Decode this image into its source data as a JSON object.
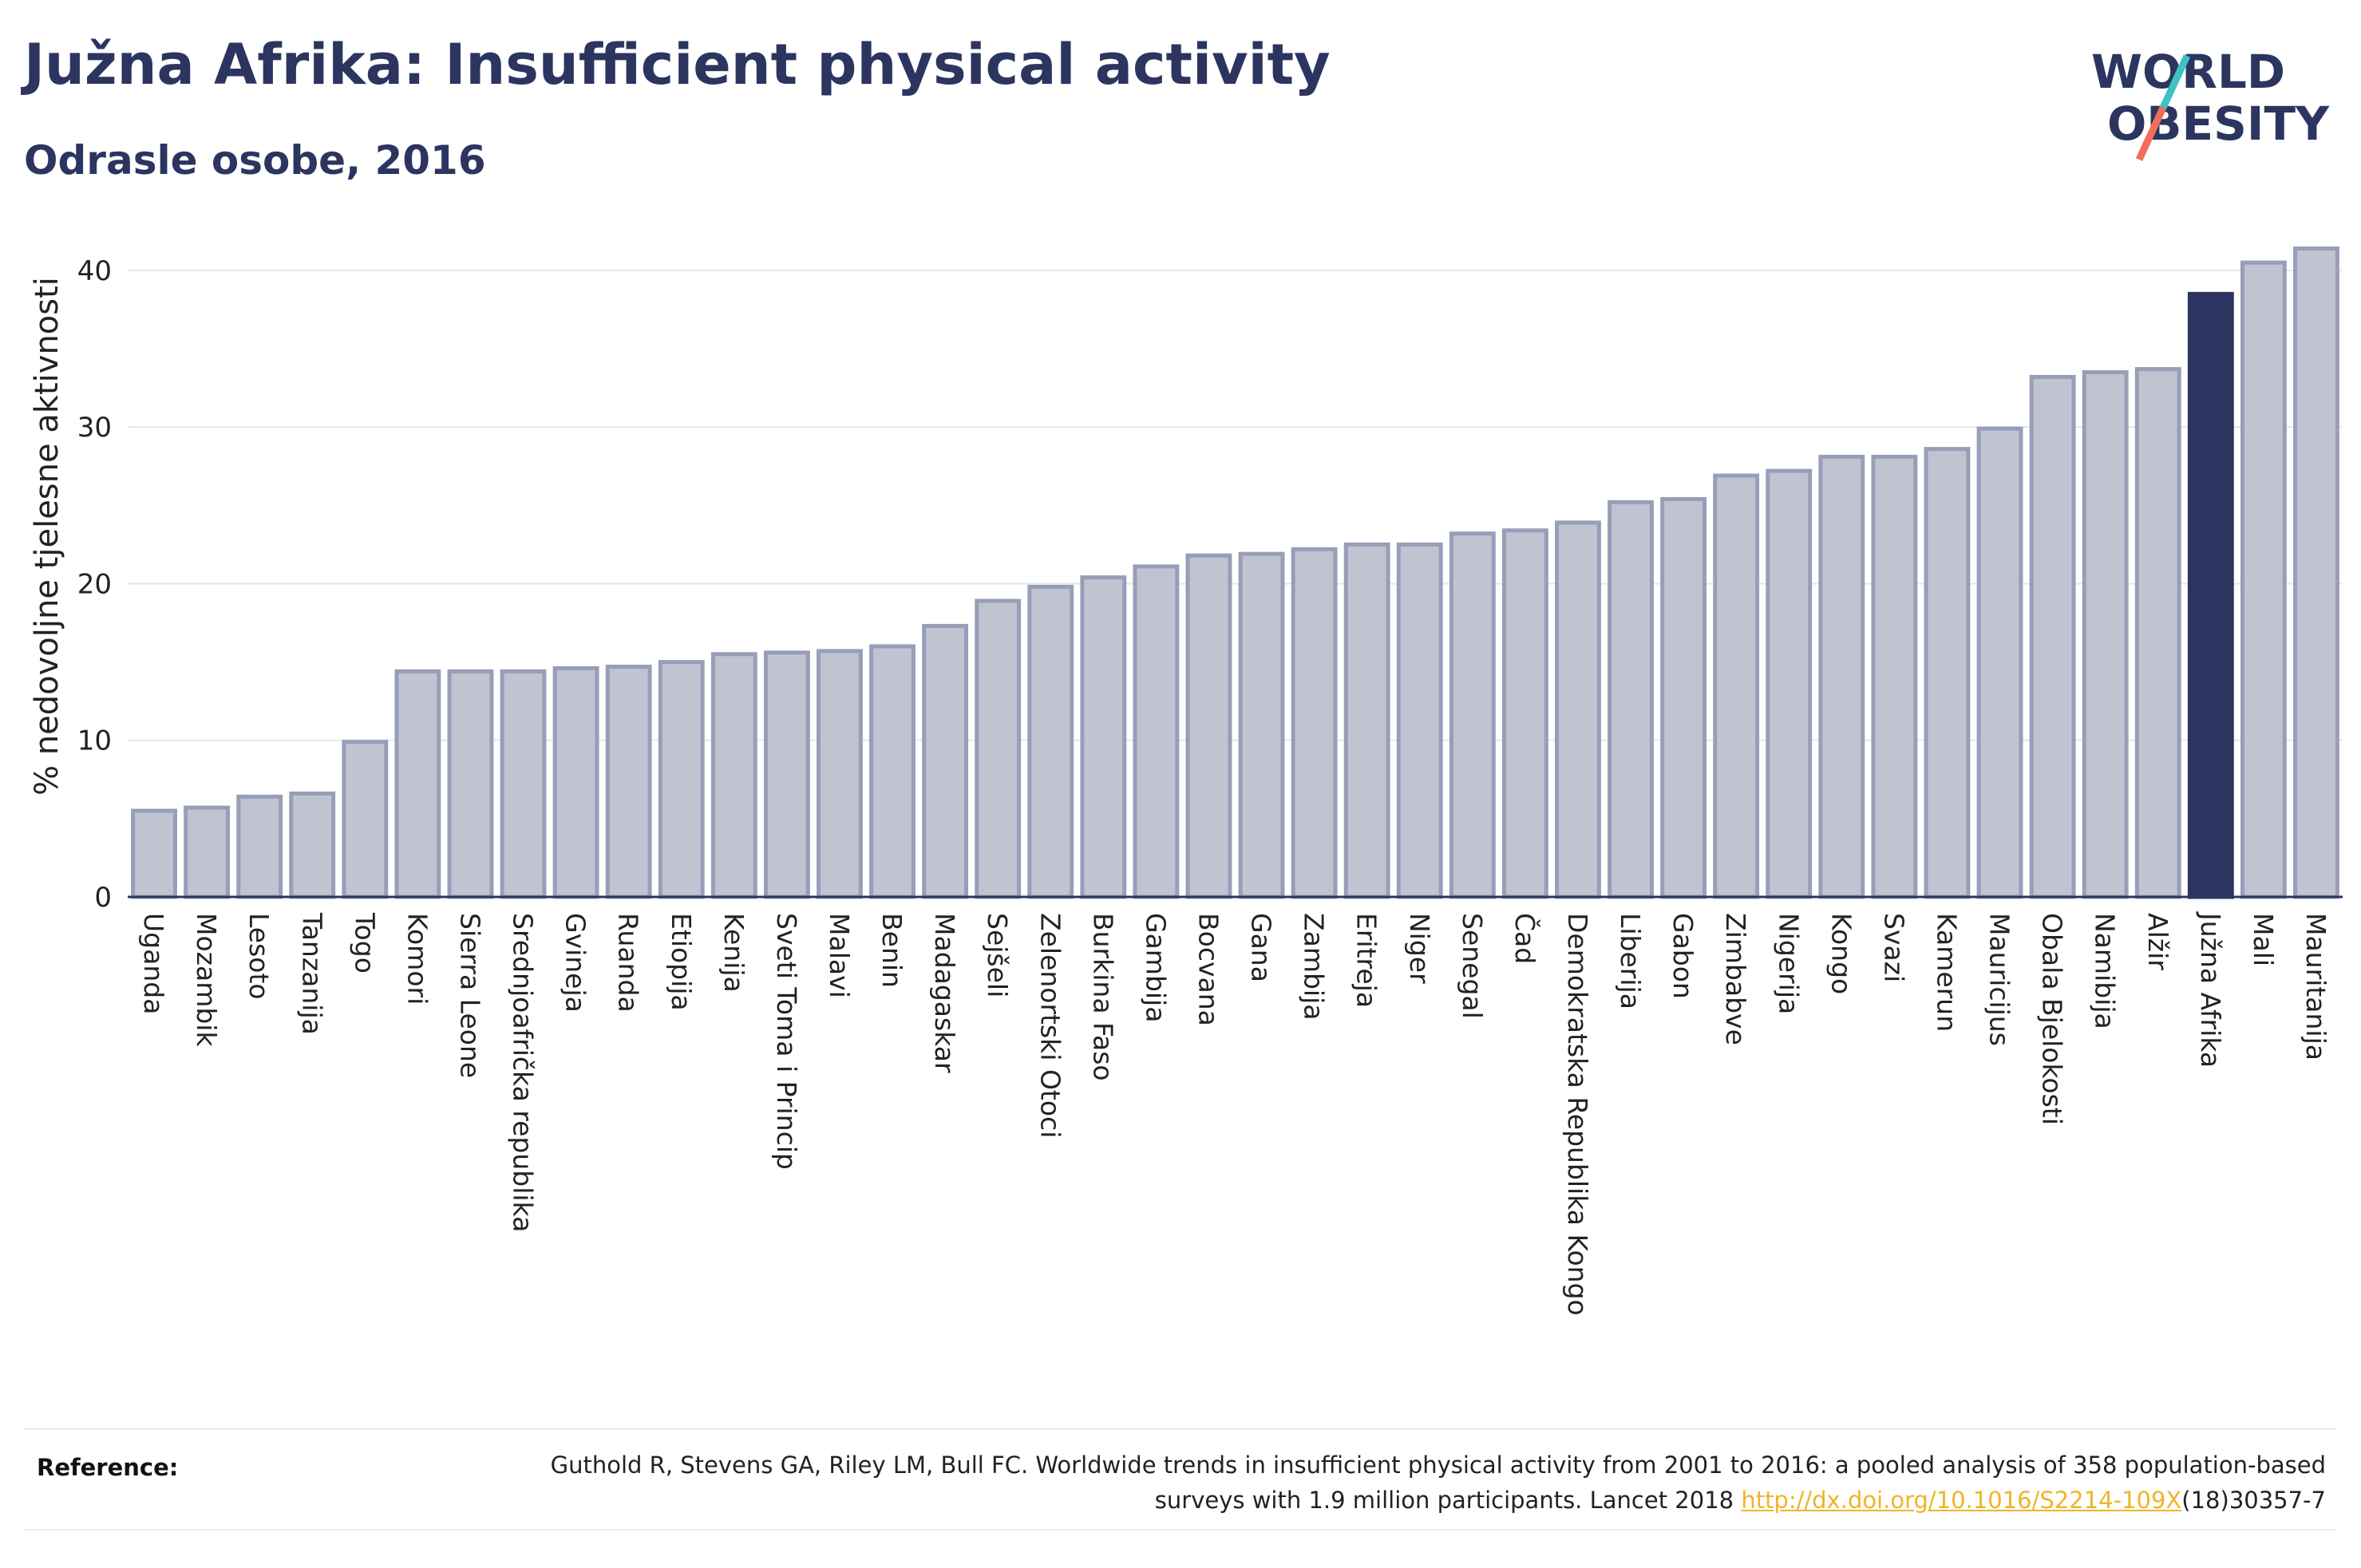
{
  "header": {
    "title": "Južna Afrika: Insufficient physical activity",
    "subtitle": "Odrasle osobe, 2016"
  },
  "logo": {
    "line1": "WORLD",
    "line2": "OBESITY",
    "colors": {
      "text": "#2c3560",
      "slash_top": "#3fc2c2",
      "slash_bottom": "#f26d5b"
    }
  },
  "chart_data": {
    "type": "bar",
    "ylabel": "% nedovoljne tjelesne aktivnosti",
    "ylim": [
      0,
      43
    ],
    "yticks": [
      0,
      10,
      20,
      30,
      40
    ],
    "grid": true,
    "highlight": "Južna Afrika",
    "colors": {
      "bar": "#c0c3d0",
      "bar_border": "#989db8",
      "highlight": "#2c3560"
    },
    "categories": [
      "Uganda",
      "Mozambik",
      "Lesoto",
      "Tanzanija",
      "Togo",
      "Komori",
      "Sierra Leone",
      "Srednjoafrička republika",
      "Gvineja",
      "Ruanda",
      "Etiopija",
      "Kenija",
      "Sveti Toma i Princip",
      "Malavi",
      "Benin",
      "Madagaskar",
      "Sejšeli",
      "Zelenortski Otoci",
      "Burkina Faso",
      "Gambija",
      "Bocvana",
      "Gana",
      "Zambija",
      "Eritreja",
      "Niger",
      "Senegal",
      "Čad",
      "Demokratska Republika Kongo",
      "Liberija",
      "Gabon",
      "Zimbabve",
      "Nigerija",
      "Kongo",
      "Svazi",
      "Kamerun",
      "Mauricijus",
      "Obala Bjelokosti",
      "Namibija",
      "Alžir",
      "Južna Afrika",
      "Mali",
      "Mauritanija"
    ],
    "values": [
      5.5,
      5.7,
      6.4,
      6.6,
      9.9,
      14.4,
      14.4,
      14.4,
      14.6,
      14.7,
      15.0,
      15.5,
      15.6,
      15.7,
      16.0,
      17.3,
      18.9,
      19.8,
      20.4,
      21.1,
      21.8,
      21.9,
      22.2,
      22.5,
      22.5,
      23.2,
      23.4,
      23.9,
      25.2,
      25.4,
      26.9,
      27.2,
      28.1,
      28.1,
      28.6,
      29.9,
      33.2,
      33.5,
      33.7,
      38.5,
      40.5,
      41.4
    ]
  },
  "reference": {
    "label": "Reference:",
    "text_before": "Guthold R, Stevens GA, Riley LM, Bull FC. Worldwide trends in insufficient physical activity from 2001 to 2016: a pooled analysis of 358 population-based surveys with 1.9 million participants. Lancet 2018 ",
    "link": "http://dx.doi.org/10.1016/S2214-109X",
    "text_after": "(18)30357-7"
  }
}
